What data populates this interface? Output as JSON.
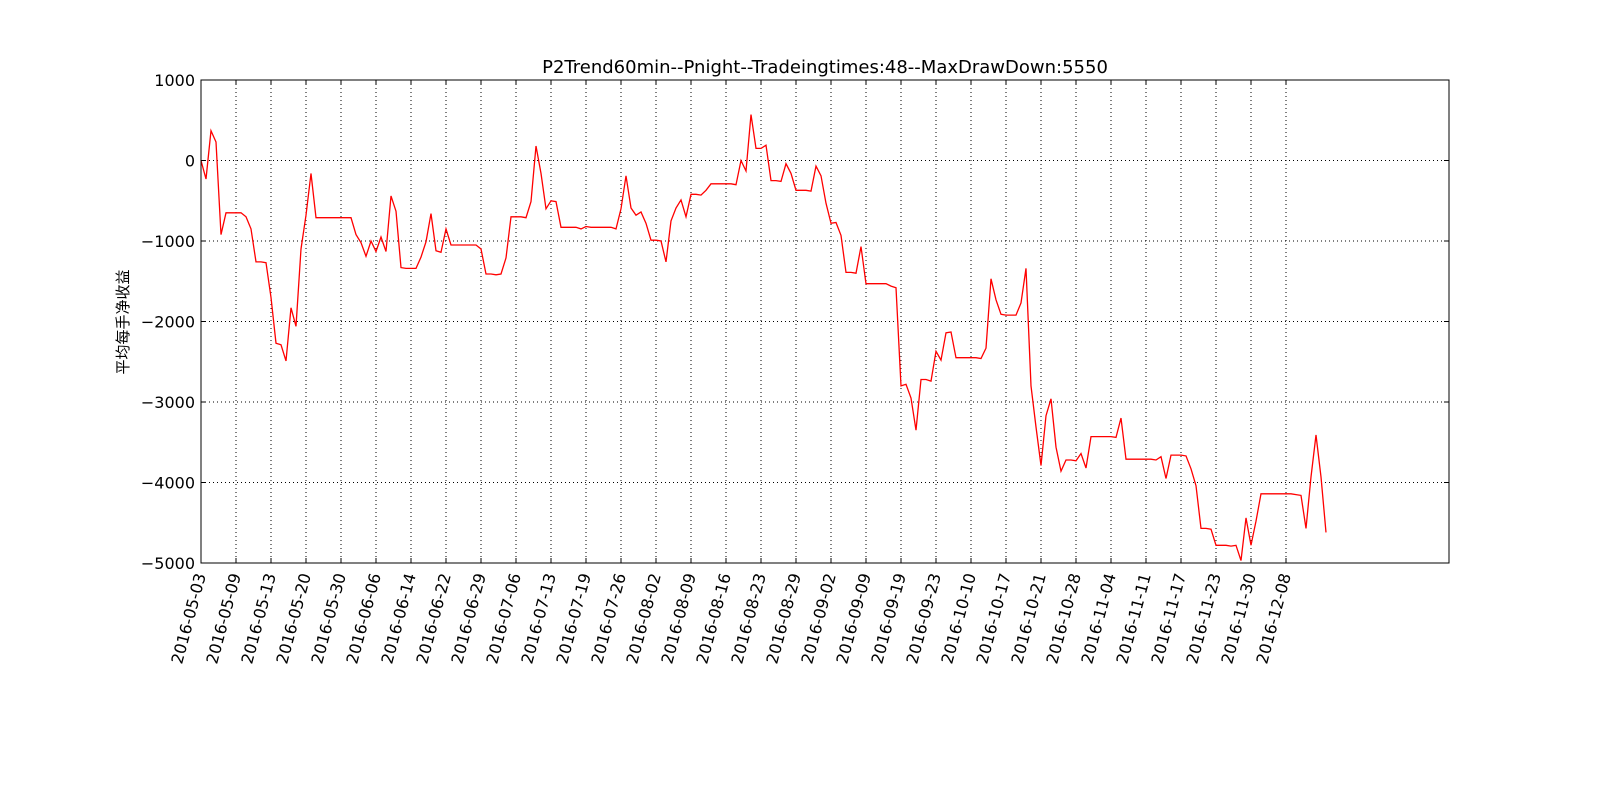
{
  "chart_data": {
    "type": "line",
    "title": "P2Trend60min--Pnight--Tradeingtimes:48--MaxDrawDown:5550",
    "xlabel": "",
    "ylabel": "平均每手净收益",
    "ylim": [
      -5000,
      1000
    ],
    "yticks": [
      1000,
      0,
      -1000,
      -2000,
      -3000,
      -4000,
      -5000
    ],
    "ytick_labels": [
      "1000",
      "0",
      "−1000",
      "−2000",
      "−3000",
      "−4000",
      "−5000"
    ],
    "xtick_labels": [
      "2016-05-03",
      "2016-05-09",
      "2016-05-13",
      "2016-05-20",
      "2016-05-30",
      "2016-06-06",
      "2016-06-14",
      "2016-06-22",
      "2016-06-29",
      "2016-07-06",
      "2016-07-13",
      "2016-07-19",
      "2016-07-26",
      "2016-08-02",
      "2016-08-09",
      "2016-08-16",
      "2016-08-23",
      "2016-08-29",
      "2016-09-02",
      "2016-09-09",
      "2016-09-19",
      "2016-09-23",
      "2016-10-10",
      "2016-10-17",
      "2016-10-21",
      "2016-10-28",
      "2016-11-04",
      "2016-11-11",
      "2016-11-17",
      "2016-11-23",
      "2016-11-30",
      "2016-12-08"
    ],
    "x_index_range": [
      0,
      214
    ],
    "xtick_every": 7,
    "grid": true,
    "series": [
      {
        "color": "#ff0000",
        "values": [
          0,
          -230,
          370,
          230,
          -920,
          -650,
          -650,
          -650,
          -650,
          -700,
          -850,
          -1260,
          -1260,
          -1270,
          -1700,
          -2270,
          -2290,
          -2490,
          -1830,
          -2060,
          -1100,
          -680,
          -160,
          -710,
          -710,
          -710,
          -710,
          -710,
          -710,
          -710,
          -710,
          -920,
          -1020,
          -1190,
          -1000,
          -1130,
          -950,
          -1130,
          -440,
          -630,
          -1330,
          -1340,
          -1340,
          -1340,
          -1200,
          -1010,
          -660,
          -1120,
          -1140,
          -850,
          -1050,
          -1050,
          -1050,
          -1050,
          -1050,
          -1050,
          -1100,
          -1410,
          -1410,
          -1420,
          -1410,
          -1210,
          -700,
          -700,
          -700,
          -710,
          -510,
          180,
          -160,
          -600,
          -500,
          -510,
          -830,
          -830,
          -830,
          -830,
          -850,
          -820,
          -830,
          -830,
          -830,
          -830,
          -830,
          -850,
          -600,
          -190,
          -590,
          -680,
          -640,
          -780,
          -990,
          -990,
          -1000,
          -1260,
          -750,
          -590,
          -490,
          -700,
          -420,
          -420,
          -430,
          -370,
          -290,
          -290,
          -290,
          -290,
          -290,
          -300,
          0,
          -130,
          570,
          150,
          150,
          190,
          -250,
          -250,
          -260,
          -40,
          -160,
          -370,
          -370,
          -370,
          -380,
          -70,
          -190,
          -530,
          -780,
          -770,
          -930,
          -1390,
          -1390,
          -1400,
          -1070,
          -1530,
          -1530,
          -1530,
          -1530,
          -1530,
          -1560,
          -1580,
          -2800,
          -2780,
          -2950,
          -3350,
          -2720,
          -2720,
          -2740,
          -2370,
          -2480,
          -2140,
          -2130,
          -2450,
          -2450,
          -2450,
          -2450,
          -2450,
          -2460,
          -2330,
          -1470,
          -1730,
          -1910,
          -1920,
          -1920,
          -1920,
          -1770,
          -1340,
          -2800,
          -3310,
          -3790,
          -3170,
          -2960,
          -3560,
          -3860,
          -3720,
          -3720,
          -3730,
          -3640,
          -3820,
          -3430,
          -3430,
          -3430,
          -3430,
          -3430,
          -3440,
          -3200,
          -3710,
          -3710,
          -3710,
          -3710,
          -3710,
          -3710,
          -3720,
          -3680,
          -3950,
          -3660,
          -3660,
          -3660,
          -3670,
          -3830,
          -4040,
          -4570,
          -4570,
          -4580,
          -4780,
          -4780,
          -4780,
          -4790,
          -4780,
          -4970,
          -4440,
          -4780,
          -4480,
          -4140,
          -4140,
          -4140,
          -4140,
          -4140,
          -4140,
          -4140,
          -4150,
          -4160,
          -4570,
          -3930,
          -3410,
          -3930,
          -4620
        ]
      }
    ]
  }
}
